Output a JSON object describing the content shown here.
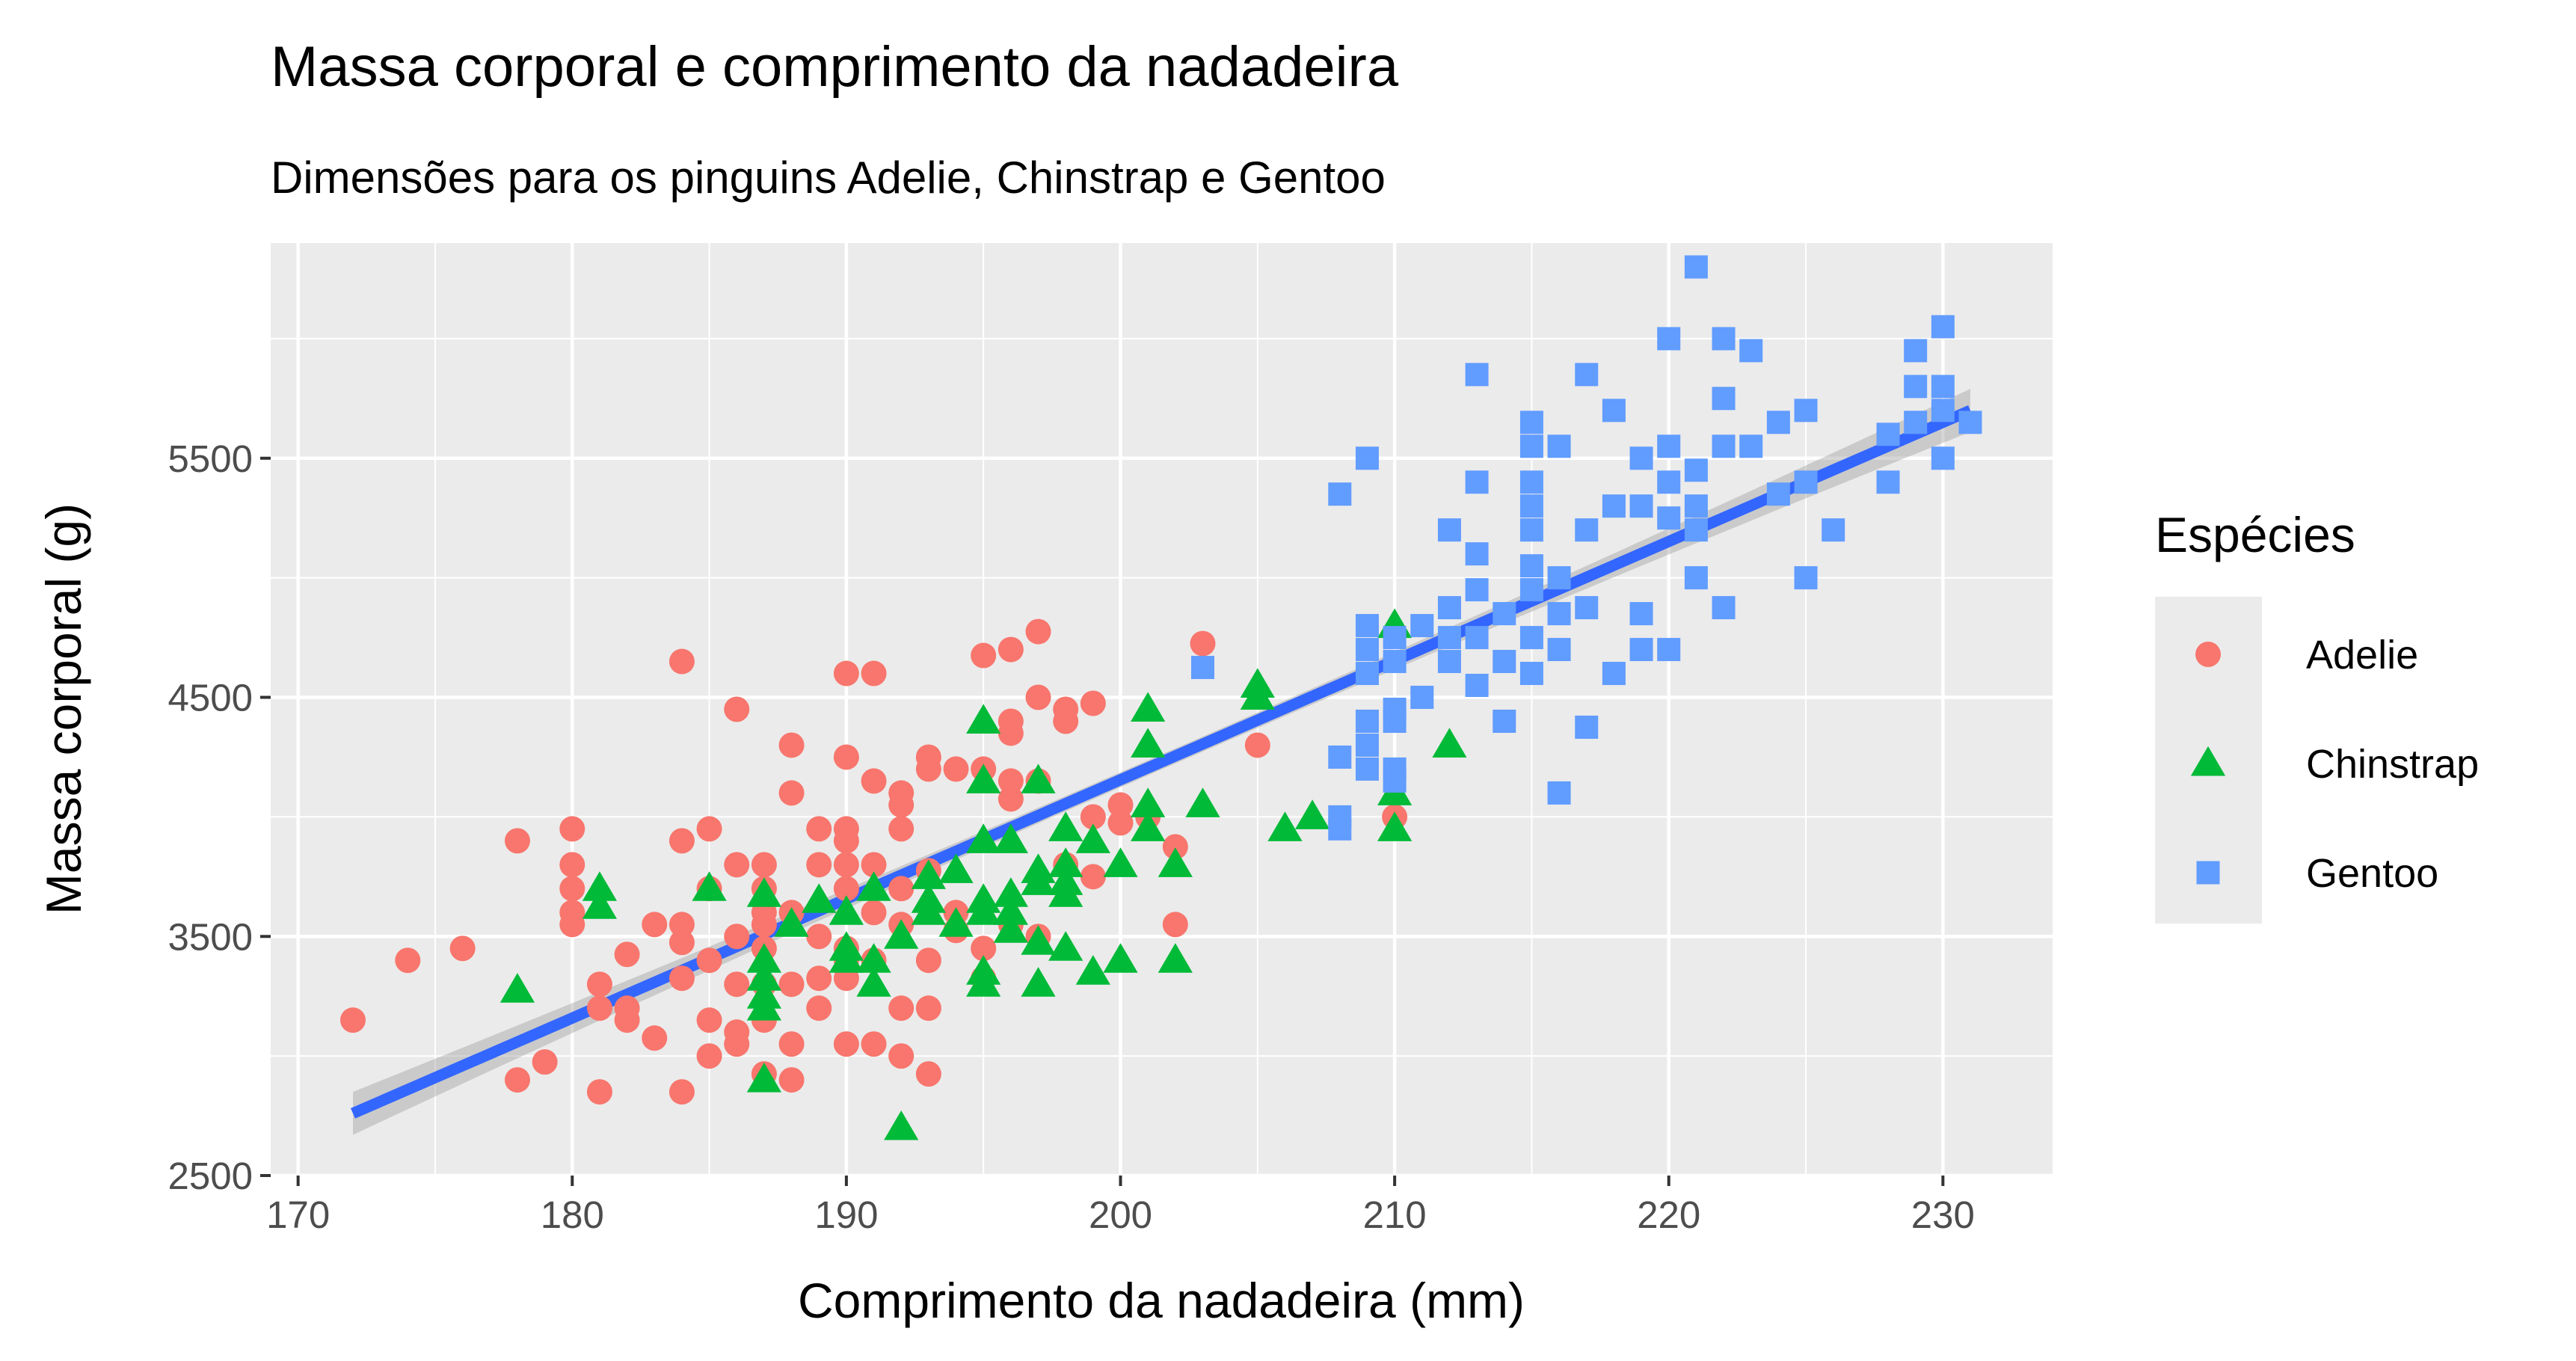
{
  "chart_data": {
    "type": "scatter",
    "title": "Massa corporal e comprimento da nadadeira",
    "subtitle": "Dimensões para os pinguins Adelie, Chinstrap e Gentoo",
    "xlabel": "Comprimento da nadadeira (mm)",
    "ylabel": "Massa corporal (g)",
    "xlim": [
      169,
      234
    ],
    "ylim": [
      2500,
      6400
    ],
    "x_ticks": [
      170,
      180,
      190,
      200,
      210,
      220,
      230
    ],
    "y_ticks": [
      2500,
      3500,
      4500,
      5500
    ],
    "grid": true,
    "legend": {
      "title": "Espécies",
      "position": "right"
    },
    "trend_line": {
      "type": "linear",
      "x_start": 172,
      "y_start": 2760,
      "x_end": 231,
      "y_end": 5700,
      "band": 90
    },
    "series": [
      {
        "name": "Adelie",
        "color": "#F8766D",
        "marker": "circle",
        "points": [
          [
            172,
            3150
          ],
          [
            174,
            3400
          ],
          [
            176,
            3450
          ],
          [
            178,
            3900
          ],
          [
            178,
            2900
          ],
          [
            179,
            2975
          ],
          [
            180,
            3950
          ],
          [
            180,
            3800
          ],
          [
            180,
            3700
          ],
          [
            180,
            3600
          ],
          [
            180,
            3550
          ],
          [
            181,
            3300
          ],
          [
            181,
            2850
          ],
          [
            181,
            3200
          ],
          [
            182,
            3425
          ],
          [
            182,
            3200
          ],
          [
            182,
            3150
          ],
          [
            183,
            3550
          ],
          [
            183,
            3075
          ],
          [
            184,
            4650
          ],
          [
            184,
            3900
          ],
          [
            184,
            3550
          ],
          [
            184,
            3475
          ],
          [
            184,
            3325
          ],
          [
            184,
            2850
          ],
          [
            185,
            3950
          ],
          [
            185,
            3700
          ],
          [
            185,
            3400
          ],
          [
            185,
            3150
          ],
          [
            185,
            3000
          ],
          [
            186,
            4450
          ],
          [
            186,
            3800
          ],
          [
            186,
            3500
          ],
          [
            186,
            3300
          ],
          [
            186,
            3100
          ],
          [
            186,
            3050
          ],
          [
            187,
            3800
          ],
          [
            187,
            3700
          ],
          [
            187,
            3600
          ],
          [
            187,
            3550
          ],
          [
            187,
            3450
          ],
          [
            187,
            3300
          ],
          [
            187,
            3150
          ],
          [
            187,
            2925
          ],
          [
            188,
            4300
          ],
          [
            188,
            4100
          ],
          [
            188,
            3600
          ],
          [
            188,
            3300
          ],
          [
            188,
            3050
          ],
          [
            188,
            2900
          ],
          [
            189,
            3950
          ],
          [
            189,
            3800
          ],
          [
            189,
            3500
          ],
          [
            189,
            3325
          ],
          [
            189,
            3200
          ],
          [
            190,
            4600
          ],
          [
            190,
            4250
          ],
          [
            190,
            3950
          ],
          [
            190,
            3900
          ],
          [
            190,
            3800
          ],
          [
            190,
            3700
          ],
          [
            190,
            3450
          ],
          [
            190,
            3400
          ],
          [
            190,
            3325
          ],
          [
            190,
            3050
          ],
          [
            191,
            4600
          ],
          [
            191,
            4150
          ],
          [
            191,
            3800
          ],
          [
            191,
            3600
          ],
          [
            191,
            3400
          ],
          [
            191,
            3050
          ],
          [
            192,
            4100
          ],
          [
            192,
            4050
          ],
          [
            192,
            3950
          ],
          [
            192,
            3700
          ],
          [
            192,
            3550
          ],
          [
            192,
            3200
          ],
          [
            192,
            3000
          ],
          [
            193,
            4250
          ],
          [
            193,
            4200
          ],
          [
            193,
            3775
          ],
          [
            193,
            3400
          ],
          [
            193,
            3200
          ],
          [
            193,
            2925
          ],
          [
            194,
            4200
          ],
          [
            194,
            3600
          ],
          [
            194,
            3525
          ],
          [
            195,
            4675
          ],
          [
            195,
            4200
          ],
          [
            195,
            3450
          ],
          [
            195,
            3325
          ],
          [
            196,
            4700
          ],
          [
            196,
            4400
          ],
          [
            196,
            4350
          ],
          [
            196,
            4150
          ],
          [
            196,
            4075
          ],
          [
            196,
            3550
          ],
          [
            197,
            4775
          ],
          [
            197,
            4500
          ],
          [
            197,
            4150
          ],
          [
            197,
            3500
          ],
          [
            198,
            4450
          ],
          [
            198,
            4400
          ],
          [
            198,
            3800
          ],
          [
            199,
            4475
          ],
          [
            199,
            4000
          ],
          [
            199,
            3750
          ],
          [
            200,
            4050
          ],
          [
            200,
            3975
          ],
          [
            201,
            4000
          ],
          [
            202,
            3875
          ],
          [
            202,
            3550
          ],
          [
            203,
            4725
          ],
          [
            205,
            4300
          ],
          [
            210,
            4000
          ]
        ]
      },
      {
        "name": "Chinstrap",
        "color": "#00BA38",
        "marker": "triangle",
        "points": [
          [
            178,
            3275
          ],
          [
            181,
            3700
          ],
          [
            181,
            3625
          ],
          [
            185,
            3700
          ],
          [
            187,
            3400
          ],
          [
            187,
            3325
          ],
          [
            187,
            3250
          ],
          [
            187,
            3200
          ],
          [
            187,
            2900
          ],
          [
            187,
            3675
          ],
          [
            188,
            3550
          ],
          [
            189,
            3650
          ],
          [
            190,
            3600
          ],
          [
            190,
            3450
          ],
          [
            190,
            3400
          ],
          [
            191,
            3700
          ],
          [
            191,
            3400
          ],
          [
            191,
            3300
          ],
          [
            192,
            3500
          ],
          [
            192,
            2700
          ],
          [
            193,
            3750
          ],
          [
            193,
            3650
          ],
          [
            193,
            3600
          ],
          [
            194,
            3775
          ],
          [
            194,
            3550
          ],
          [
            195,
            4400
          ],
          [
            195,
            4150
          ],
          [
            195,
            3900
          ],
          [
            195,
            3650
          ],
          [
            195,
            3600
          ],
          [
            195,
            3350
          ],
          [
            195,
            3300
          ],
          [
            196,
            3900
          ],
          [
            196,
            3675
          ],
          [
            196,
            3600
          ],
          [
            196,
            3525
          ],
          [
            197,
            4150
          ],
          [
            197,
            3775
          ],
          [
            197,
            3725
          ],
          [
            197,
            3475
          ],
          [
            197,
            3300
          ],
          [
            198,
            3950
          ],
          [
            198,
            3800
          ],
          [
            198,
            3725
          ],
          [
            198,
            3675
          ],
          [
            198,
            3450
          ],
          [
            199,
            3900
          ],
          [
            199,
            3350
          ],
          [
            200,
            3800
          ],
          [
            200,
            3400
          ],
          [
            201,
            4450
          ],
          [
            201,
            4300
          ],
          [
            201,
            4050
          ],
          [
            201,
            3950
          ],
          [
            202,
            3800
          ],
          [
            202,
            3400
          ],
          [
            203,
            4050
          ],
          [
            205,
            4550
          ],
          [
            205,
            4500
          ],
          [
            206,
            3950
          ],
          [
            207,
            4000
          ],
          [
            210,
            4800
          ],
          [
            210,
            4100
          ],
          [
            210,
            3950
          ],
          [
            212,
            4300
          ]
        ]
      },
      {
        "name": "Gentoo",
        "color": "#619CFF",
        "marker": "square",
        "points": [
          [
            203,
            4625
          ],
          [
            208,
            5350
          ],
          [
            208,
            4250
          ],
          [
            208,
            4000
          ],
          [
            208,
            3950
          ],
          [
            209,
            5500
          ],
          [
            209,
            4800
          ],
          [
            209,
            4700
          ],
          [
            209,
            4600
          ],
          [
            209,
            4400
          ],
          [
            209,
            4300
          ],
          [
            209,
            4200
          ],
          [
            210,
            4750
          ],
          [
            210,
            4650
          ],
          [
            210,
            4450
          ],
          [
            210,
            4400
          ],
          [
            210,
            4200
          ],
          [
            210,
            4150
          ],
          [
            211,
            4800
          ],
          [
            211,
            4500
          ],
          [
            212,
            5200
          ],
          [
            212,
            4875
          ],
          [
            212,
            4750
          ],
          [
            212,
            4650
          ],
          [
            213,
            5850
          ],
          [
            213,
            5400
          ],
          [
            213,
            5100
          ],
          [
            213,
            4950
          ],
          [
            213,
            4750
          ],
          [
            213,
            4550
          ],
          [
            214,
            4850
          ],
          [
            214,
            4650
          ],
          [
            214,
            4400
          ],
          [
            215,
            5650
          ],
          [
            215,
            5550
          ],
          [
            215,
            5400
          ],
          [
            215,
            5300
          ],
          [
            215,
            5200
          ],
          [
            215,
            5050
          ],
          [
            215,
            4950
          ],
          [
            215,
            4750
          ],
          [
            215,
            4600
          ],
          [
            216,
            5550
          ],
          [
            216,
            5000
          ],
          [
            216,
            4850
          ],
          [
            216,
            4700
          ],
          [
            216,
            4100
          ],
          [
            217,
            5850
          ],
          [
            217,
            5200
          ],
          [
            217,
            4875
          ],
          [
            217,
            4375
          ],
          [
            218,
            5700
          ],
          [
            218,
            5300
          ],
          [
            218,
            4600
          ],
          [
            219,
            5500
          ],
          [
            219,
            5300
          ],
          [
            219,
            4850
          ],
          [
            219,
            4700
          ],
          [
            220,
            6000
          ],
          [
            220,
            5550
          ],
          [
            220,
            5400
          ],
          [
            220,
            5250
          ],
          [
            220,
            4700
          ],
          [
            221,
            6300
          ],
          [
            221,
            5450
          ],
          [
            221,
            5300
          ],
          [
            221,
            5200
          ],
          [
            221,
            5000
          ],
          [
            222,
            6000
          ],
          [
            222,
            5750
          ],
          [
            222,
            5550
          ],
          [
            222,
            4875
          ],
          [
            223,
            5950
          ],
          [
            223,
            5550
          ],
          [
            224,
            5650
          ],
          [
            224,
            5350
          ],
          [
            225,
            5700
          ],
          [
            225,
            5400
          ],
          [
            225,
            5000
          ],
          [
            226,
            5200
          ],
          [
            228,
            5600
          ],
          [
            228,
            5400
          ],
          [
            229,
            5950
          ],
          [
            229,
            5800
          ],
          [
            229,
            5650
          ],
          [
            230,
            6050
          ],
          [
            230,
            5800
          ],
          [
            230,
            5700
          ],
          [
            230,
            5500
          ],
          [
            231,
            5650
          ]
        ]
      }
    ]
  }
}
